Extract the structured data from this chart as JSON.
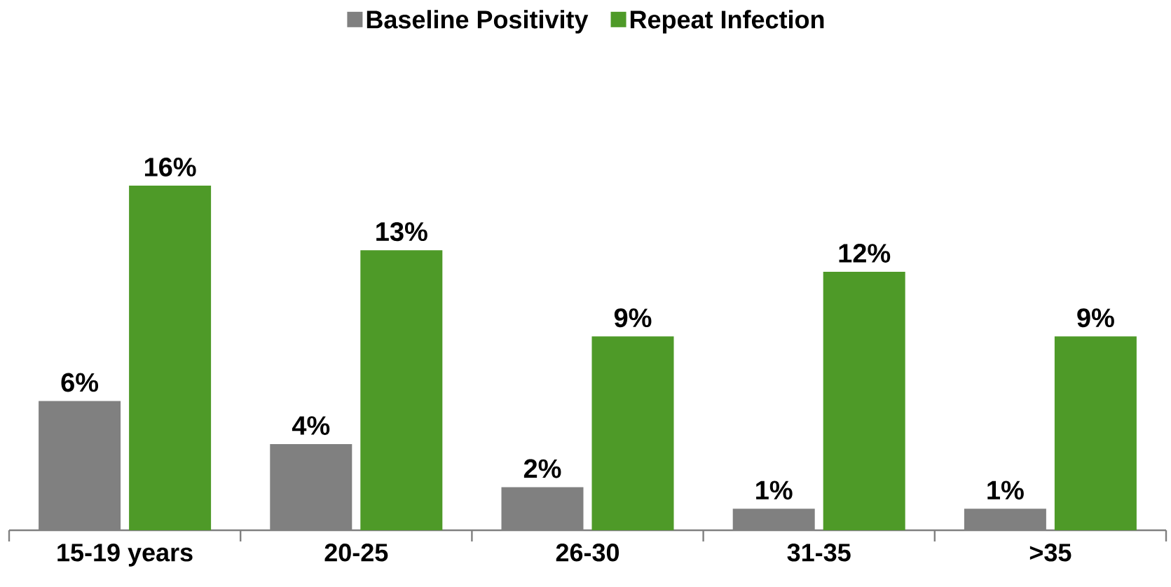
{
  "chart_data": {
    "type": "bar",
    "categories": [
      "15-19 years",
      "20-25",
      "26-30",
      "31-35",
      ">35"
    ],
    "series": [
      {
        "name": "Baseline Positivity",
        "color": "#808080",
        "values": [
          6,
          4,
          2,
          1,
          1
        ],
        "value_labels": [
          "6%",
          "4%",
          "2%",
          "1%",
          "1%"
        ]
      },
      {
        "name": "Repeat Infection",
        "color": "#4e9a28",
        "values": [
          16,
          13,
          9,
          12,
          9
        ],
        "value_labels": [
          "16%",
          "13%",
          "9%",
          "12%",
          "9%"
        ]
      }
    ],
    "legend": "top"
  }
}
